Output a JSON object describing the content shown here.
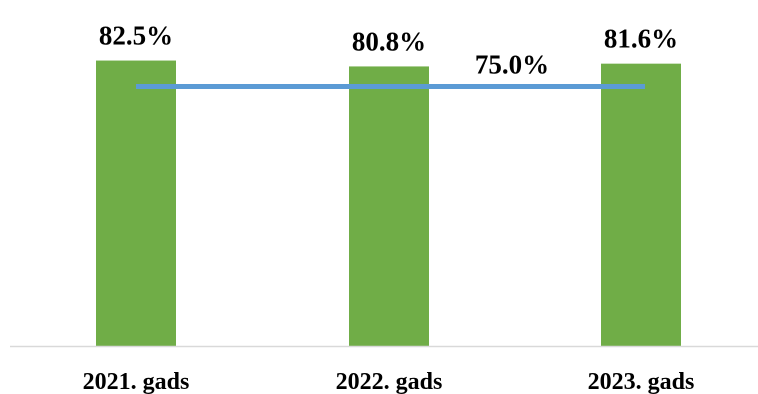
{
  "chart_data": {
    "type": "bar",
    "categories": [
      "2021. gads",
      "2022. gads",
      "2023. gads"
    ],
    "series": [
      {
        "type": "bar",
        "values": [
          82.5,
          80.8,
          81.6
        ],
        "labels": [
          "82.5%",
          "80.8%",
          "81.6%"
        ],
        "color": "#70ad47"
      },
      {
        "type": "line",
        "values": [
          75.0,
          75.0,
          75.0
        ],
        "label": "75.0%",
        "color": "#5b9bd5"
      }
    ],
    "ylim": [
      0,
      100
    ],
    "grid": false,
    "axis_color": "#d9d9d9"
  }
}
